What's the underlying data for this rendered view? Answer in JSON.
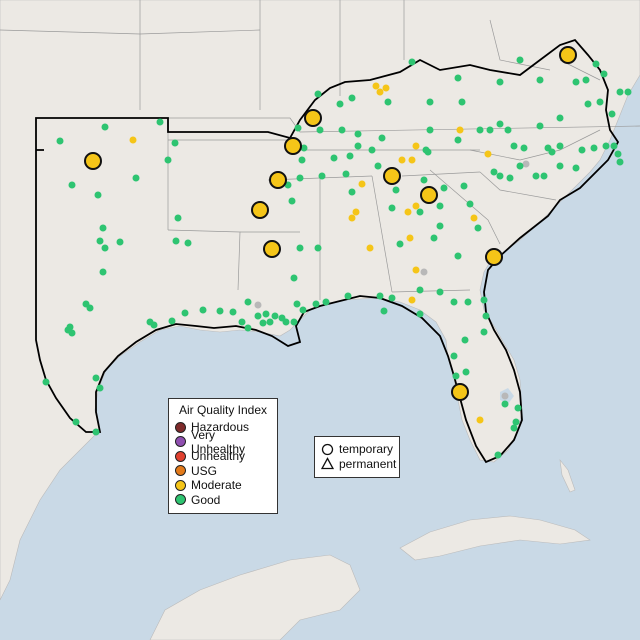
{
  "legend_aqi": {
    "title": "Air Quality Index",
    "items": [
      {
        "label": "Hazardous",
        "color": "#7e2b2b"
      },
      {
        "label": "Very Unhealthy",
        "color": "#8f4fb0"
      },
      {
        "label": "Unhealthy",
        "color": "#e0402f"
      },
      {
        "label": "USG",
        "color": "#e37a1a"
      },
      {
        "label": "Moderate",
        "color": "#f5c518"
      },
      {
        "label": "Good",
        "color": "#2ec471"
      }
    ]
  },
  "legend_type": {
    "items": [
      {
        "label": "temporary",
        "shape": "circle"
      },
      {
        "label": "permanent",
        "shape": "triangle"
      }
    ]
  },
  "colors": {
    "good": "#2ec471",
    "moderate": "#f5c518",
    "no_data": "#b8b8b8",
    "land": "#ece9e4",
    "water": "#c9d9e6"
  }
}
